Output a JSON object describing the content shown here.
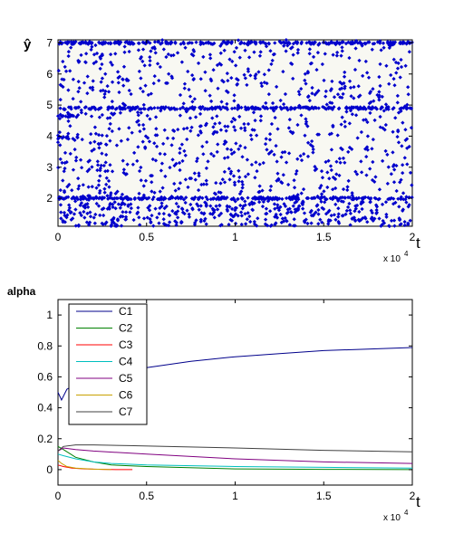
{
  "chart_data": [
    {
      "type": "scatter",
      "ylabel": "ŷ",
      "xlabel": "t",
      "x_exponent_label": "x 10",
      "x_exponent": "4",
      "xlim": [
        0,
        2
      ],
      "ylim": [
        1.1,
        7.1
      ],
      "xticks": [
        "0",
        "0.5",
        "1",
        "1.5",
        "2"
      ],
      "yticks": [
        "2",
        "3",
        "4",
        "5",
        "6",
        "7"
      ],
      "marker_color": "#0000cc",
      "dense_levels": [
        {
          "y": 7,
          "x_from": 0,
          "x_to": 2
        },
        {
          "y": 4.9,
          "x_from": 0,
          "x_to": 2
        },
        {
          "y": 2,
          "x_from": 0,
          "x_to": 2
        },
        {
          "y": 3.95,
          "x_from": 0,
          "x_to": 0.12
        },
        {
          "y": 4.65,
          "x_from": 0,
          "x_to": 0.12
        }
      ],
      "scatter_range": {
        "x": [
          0,
          2
        ],
        "y": [
          1.1,
          7.1
        ]
      }
    },
    {
      "type": "line",
      "ylabel": "alpha",
      "xlabel": "t",
      "x_exponent_label": "x 10",
      "x_exponent": "4",
      "xlim": [
        0,
        2
      ],
      "ylim": [
        -0.1,
        1.1
      ],
      "xticks": [
        "0",
        "0.5",
        "1",
        "1.5",
        "2"
      ],
      "yticks": [
        "0",
        "0.2",
        "0.4",
        "0.6",
        "0.8",
        "1"
      ],
      "legend_position": "top-left",
      "series": [
        {
          "name": "C1",
          "color": "#00008b",
          "x": [
            0,
            0.02,
            0.05,
            0.1,
            0.15,
            0.2,
            0.3,
            0.5,
            0.75,
            1,
            1.25,
            1.5,
            1.75,
            2
          ],
          "y": [
            0.5,
            0.45,
            0.52,
            0.55,
            0.58,
            0.6,
            0.62,
            0.66,
            0.7,
            0.73,
            0.75,
            0.77,
            0.78,
            0.79
          ]
        },
        {
          "name": "C2",
          "color": "#008000",
          "x": [
            0,
            0.03,
            0.1,
            0.2,
            0.3,
            0.5,
            1,
            1.5,
            2
          ],
          "y": [
            0.15,
            0.13,
            0.08,
            0.05,
            0.03,
            0.02,
            0.005,
            0.002,
            0.0
          ]
        },
        {
          "name": "C3",
          "color": "#ff0000",
          "x": [
            0,
            0.03,
            0.08,
            0.15,
            0.25,
            0.35,
            0.42
          ],
          "y": [
            0.03,
            0.02,
            0.01,
            0.005,
            0.002,
            0.0,
            0.0
          ]
        },
        {
          "name": "C4",
          "color": "#00bfbf",
          "x": [
            0,
            0.03,
            0.1,
            0.2,
            0.3,
            0.5,
            1,
            1.5,
            2
          ],
          "y": [
            0.1,
            0.09,
            0.07,
            0.05,
            0.04,
            0.03,
            0.02,
            0.015,
            0.01
          ]
        },
        {
          "name": "C5",
          "color": "#800080",
          "x": [
            0,
            0.03,
            0.1,
            0.2,
            0.5,
            1,
            1.5,
            2
          ],
          "y": [
            0.12,
            0.14,
            0.13,
            0.12,
            0.1,
            0.07,
            0.05,
            0.04
          ]
        },
        {
          "name": "C6",
          "color": "#c8a000",
          "x": [
            0,
            0.02,
            0.05,
            0.1,
            0.2,
            0.3
          ],
          "y": [
            0.06,
            0.04,
            0.02,
            0.01,
            0.003,
            0.0
          ]
        },
        {
          "name": "C7",
          "color": "#404040",
          "x": [
            0,
            0.03,
            0.1,
            0.2,
            0.4,
            0.6,
            1,
            1.5,
            2
          ],
          "y": [
            0.12,
            0.15,
            0.16,
            0.16,
            0.155,
            0.15,
            0.14,
            0.125,
            0.115
          ]
        }
      ]
    }
  ]
}
